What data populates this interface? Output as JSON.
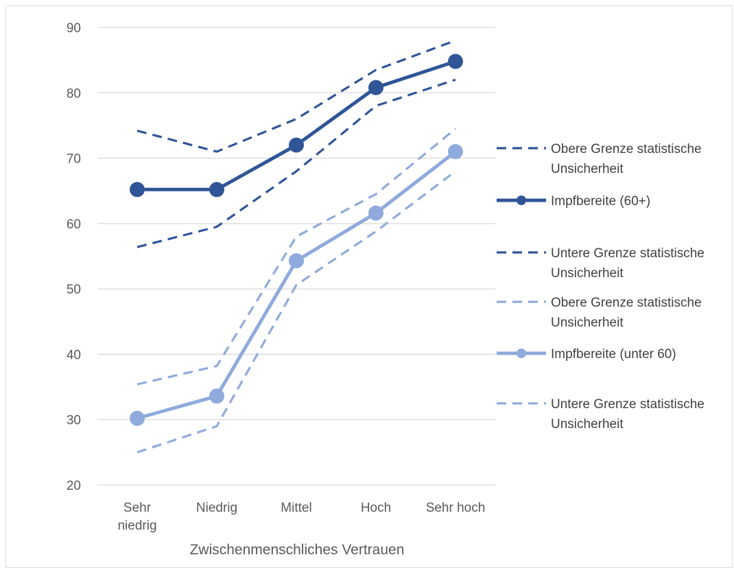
{
  "chart_data": {
    "type": "line",
    "xlabel": "Zwischenmenschliches Vertrauen",
    "ylabel": "",
    "ylim": [
      20,
      90
    ],
    "yticks": [
      20,
      30,
      40,
      50,
      60,
      70,
      80,
      90
    ],
    "grid": true,
    "legend_position": "right",
    "categories": [
      [
        "Sehr",
        "niedrig"
      ],
      [
        "Niedrig"
      ],
      [
        "Mittel"
      ],
      [
        "Hoch"
      ],
      [
        "Sehr hoch"
      ]
    ],
    "series": [
      {
        "name": [
          "Obere Grenze statistische",
          "Unsicherheit"
        ],
        "values": [
          74.2,
          71.0,
          76.0,
          83.5,
          88.0
        ],
        "color": "#2f5597",
        "style": "dashed",
        "marker": false
      },
      {
        "name": [
          "Impfbereite (60+)"
        ],
        "values": [
          65.2,
          65.2,
          72.0,
          80.8,
          84.8
        ],
        "color": "#2f5597",
        "style": "solid",
        "marker": true
      },
      {
        "name": [
          "Untere Grenze statistische",
          "Unsicherheit"
        ],
        "values": [
          56.4,
          59.5,
          68.0,
          78.0,
          82.0
        ],
        "color": "#2f5597",
        "style": "dashed",
        "marker": false
      },
      {
        "name": [
          "Obere Grenze statistische",
          "Unsicherheit"
        ],
        "values": [
          35.4,
          38.2,
          58.0,
          64.5,
          74.5
        ],
        "color": "#8faadc",
        "style": "dashed",
        "marker": false
      },
      {
        "name": [
          "Impfbereite (unter 60)"
        ],
        "values": [
          30.2,
          33.6,
          54.3,
          61.6,
          71.0
        ],
        "color": "#8faadc",
        "style": "solid",
        "marker": true
      },
      {
        "name": [
          "Untere Grenze statistische",
          "Unsicherheit"
        ],
        "values": [
          25.0,
          29.0,
          50.6,
          58.8,
          68.0
        ],
        "color": "#8faadc",
        "style": "dashed",
        "marker": false
      }
    ]
  }
}
